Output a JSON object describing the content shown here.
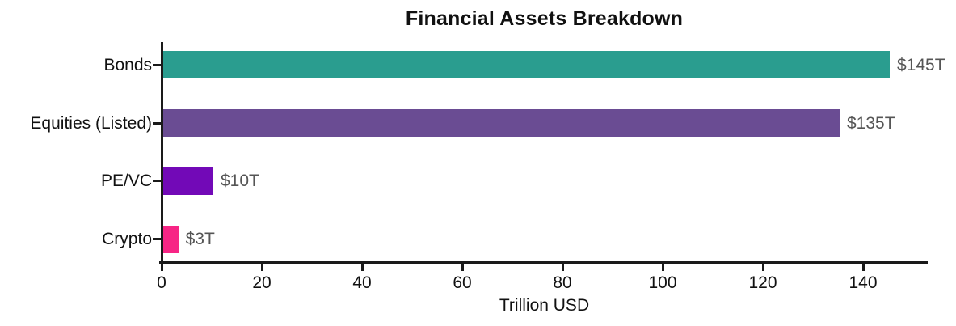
{
  "title": "Financial Assets Breakdown",
  "chart_data": {
    "type": "bar",
    "orientation": "horizontal",
    "title": "Financial Assets Breakdown",
    "xlabel": "Trillion USD",
    "categories": [
      "Bonds",
      "Equities (Listed)",
      "PE/VC",
      "Crypto"
    ],
    "values": [
      145,
      135,
      10,
      3
    ],
    "value_labels": [
      "$145T",
      "$135T",
      "$10T",
      "$3T"
    ],
    "bar_colors": [
      "#2a9d8f",
      "#6a4c93",
      "#7209b7",
      "#f72585"
    ],
    "xticks": [
      0,
      20,
      40,
      60,
      80,
      100,
      120,
      140
    ],
    "xlim": [
      0,
      152.5
    ],
    "grid": false,
    "legend": null,
    "axis_color": "#1a1a1a",
    "value_label_color": "#555555"
  }
}
